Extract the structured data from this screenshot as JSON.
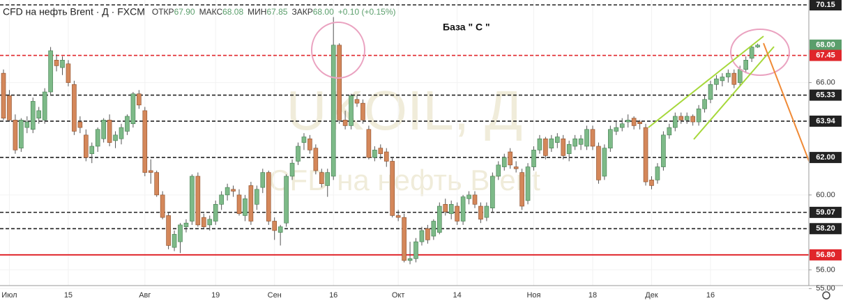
{
  "chart_data": {
    "type": "candlestick",
    "title": "CFD на нефть Brent · Д · FXCM",
    "legend_items": [
      {
        "label": "ОТКР",
        "value": "67.90"
      },
      {
        "label": "МАКС",
        "value": "68.08"
      },
      {
        "label": "МИН",
        "value": "67.85"
      },
      {
        "label": "ЗАКР",
        "value": "68.00"
      }
    ],
    "change": "+0.10 (+0.15%)",
    "annotation": "База \" С \"",
    "watermark": [
      "UKOIL, Д",
      "CFD на нефть Brent"
    ],
    "up_color": "#7dba88",
    "down_color": "#d4875a",
    "ylim": [
      55.16,
      70.41
    ],
    "yticks": [
      {
        "value": 66,
        "label": "66.00"
      },
      {
        "value": 60,
        "label": "60.00"
      },
      {
        "value": 56,
        "label": "56.00"
      },
      {
        "value": 55,
        "label": "55.00"
      }
    ],
    "levels": [
      {
        "value": 70.15,
        "label": "70.15",
        "color": "#222222",
        "style": "dashed"
      },
      {
        "value": 68.0,
        "label": "68.00",
        "color": "#5a9e6b",
        "style": "none"
      },
      {
        "value": 67.45,
        "label": "67.45",
        "color": "#e0262b",
        "style": "dashed"
      },
      {
        "value": 65.33,
        "label": "65.33",
        "color": "#222222",
        "style": "dashed"
      },
      {
        "value": 63.94,
        "label": "63.94",
        "color": "#222222",
        "style": "dashed"
      },
      {
        "value": 62.0,
        "label": "62.00",
        "color": "#222222",
        "style": "dashed"
      },
      {
        "value": 59.07,
        "label": "59.07",
        "color": "#222222",
        "style": "dashed"
      },
      {
        "value": 58.2,
        "label": "58.20",
        "color": "#222222",
        "style": "dashed"
      },
      {
        "value": 56.8,
        "label": "56.80",
        "color": "#e0262b",
        "style": "solid"
      }
    ],
    "xticks": [
      {
        "value": 1,
        "label": "Июл"
      },
      {
        "value": 11,
        "label": "15"
      },
      {
        "value": 24,
        "label": "Авг"
      },
      {
        "value": 36,
        "label": "19"
      },
      {
        "value": 46,
        "label": "Сен"
      },
      {
        "value": 56,
        "label": "16"
      },
      {
        "value": 67,
        "label": "Окт"
      },
      {
        "value": 77,
        "label": "14"
      },
      {
        "value": 90,
        "label": "Ноя"
      },
      {
        "value": 100,
        "label": "18"
      },
      {
        "value": 110,
        "label": "Дек"
      },
      {
        "value": 120,
        "label": "16"
      }
    ],
    "candles": [
      [
        66.5,
        66.7,
        64.0,
        64.1
      ],
      [
        65.3,
        65.6,
        63.9,
        64.0
      ],
      [
        64.0,
        64.3,
        62.2,
        62.4
      ],
      [
        62.5,
        64.1,
        62.3,
        64.0
      ],
      [
        63.6,
        64.2,
        63.3,
        63.9
      ],
      [
        63.5,
        65.2,
        63.3,
        65.0
      ],
      [
        64.1,
        64.7,
        63.8,
        64.5
      ],
      [
        64.0,
        65.7,
        63.8,
        65.5
      ],
      [
        65.5,
        67.9,
        65.3,
        67.7
      ],
      [
        67.2,
        67.5,
        66.6,
        66.9
      ],
      [
        66.8,
        67.4,
        66.4,
        67.2
      ],
      [
        67.0,
        67.2,
        65.8,
        66.0
      ],
      [
        65.9,
        66.1,
        63.2,
        63.4
      ],
      [
        63.9,
        64.2,
        63.3,
        63.6
      ],
      [
        63.2,
        63.5,
        61.8,
        62.0
      ],
      [
        62.2,
        62.8,
        61.7,
        62.6
      ],
      [
        62.6,
        63.6,
        62.3,
        63.5
      ],
      [
        63.0,
        64.1,
        62.8,
        64.0
      ],
      [
        64.0,
        64.3,
        62.6,
        62.8
      ],
      [
        62.9,
        63.4,
        62.5,
        63.2
      ],
      [
        63.0,
        63.8,
        62.7,
        63.6
      ],
      [
        63.4,
        64.3,
        63.2,
        64.2
      ],
      [
        63.8,
        65.5,
        63.6,
        65.4
      ],
      [
        65.4,
        65.6,
        64.6,
        64.8
      ],
      [
        64.5,
        64.7,
        61.0,
        61.2
      ],
      [
        61.3,
        61.9,
        60.6,
        61.2
      ],
      [
        61.2,
        61.3,
        59.9,
        60.0
      ],
      [
        60.0,
        60.2,
        58.7,
        58.8
      ],
      [
        58.9,
        59.1,
        57.1,
        57.3
      ],
      [
        57.2,
        58.1,
        57.0,
        57.9
      ],
      [
        57.5,
        58.5,
        56.9,
        58.4
      ],
      [
        58.3,
        58.7,
        58.0,
        58.5
      ],
      [
        58.6,
        61.1,
        58.4,
        61.0
      ],
      [
        61.0,
        61.2,
        58.3,
        58.4
      ],
      [
        58.8,
        59.0,
        58.2,
        58.3
      ],
      [
        58.4,
        58.9,
        58.1,
        58.7
      ],
      [
        58.6,
        59.7,
        58.4,
        59.5
      ],
      [
        59.5,
        60.2,
        59.2,
        60.0
      ],
      [
        60.0,
        60.6,
        59.7,
        60.4
      ],
      [
        60.3,
        60.5,
        59.9,
        60.2
      ],
      [
        60.0,
        60.3,
        58.9,
        59.0
      ],
      [
        58.9,
        60.0,
        58.6,
        59.8
      ],
      [
        60.5,
        60.7,
        58.4,
        58.6
      ],
      [
        59.5,
        60.5,
        59.2,
        60.3
      ],
      [
        60.4,
        61.4,
        60.1,
        61.2
      ],
      [
        61.2,
        61.3,
        58.4,
        58.6
      ],
      [
        58.6,
        58.8,
        57.6,
        58.1
      ],
      [
        58.0,
        58.4,
        57.3,
        58.3
      ],
      [
        58.5,
        61.1,
        58.3,
        61.0
      ],
      [
        61.0,
        61.9,
        60.8,
        61.7
      ],
      [
        61.8,
        62.8,
        61.6,
        62.6
      ],
      [
        62.8,
        63.3,
        62.4,
        63.1
      ],
      [
        63.0,
        63.2,
        62.2,
        62.4
      ],
      [
        62.5,
        62.7,
        61.1,
        61.3
      ],
      [
        61.2,
        61.4,
        60.4,
        60.6
      ],
      [
        60.5,
        61.4,
        59.9,
        61.2
      ],
      [
        61.0,
        69.5,
        60.8,
        68.0
      ],
      [
        68.0,
        68.1,
        63.8,
        64.0
      ],
      [
        64.0,
        64.5,
        63.5,
        63.7
      ],
      [
        63.7,
        65.4,
        63.5,
        65.3
      ],
      [
        65.1,
        65.3,
        64.7,
        64.9
      ],
      [
        64.9,
        65.1,
        63.8,
        64.0
      ],
      [
        63.5,
        63.7,
        61.9,
        62.0
      ],
      [
        62.0,
        62.6,
        61.8,
        62.4
      ],
      [
        62.5,
        62.7,
        61.9,
        62.2
      ],
      [
        62.3,
        62.5,
        61.5,
        61.8
      ],
      [
        61.8,
        62.0,
        58.8,
        58.9
      ],
      [
        58.9,
        59.2,
        58.6,
        58.8
      ],
      [
        58.8,
        59.0,
        56.4,
        56.5
      ],
      [
        56.5,
        57.5,
        56.3,
        56.6
      ],
      [
        56.6,
        57.7,
        56.4,
        57.5
      ],
      [
        57.5,
        58.3,
        57.3,
        58.1
      ],
      [
        58.2,
        58.4,
        57.4,
        57.6
      ],
      [
        57.8,
        58.7,
        57.6,
        58.6
      ],
      [
        58.0,
        59.6,
        57.9,
        59.4
      ],
      [
        59.5,
        59.8,
        58.9,
        59.1
      ],
      [
        59.0,
        59.7,
        58.7,
        59.5
      ],
      [
        59.4,
        59.6,
        58.4,
        58.6
      ],
      [
        58.6,
        60.0,
        58.4,
        59.9
      ],
      [
        59.8,
        60.2,
        59.5,
        60.0
      ],
      [
        60.0,
        60.2,
        59.3,
        59.5
      ],
      [
        59.4,
        59.6,
        58.5,
        58.7
      ],
      [
        58.8,
        59.6,
        58.6,
        59.4
      ],
      [
        59.3,
        61.2,
        59.1,
        61.0
      ],
      [
        61.0,
        61.8,
        60.8,
        61.6
      ],
      [
        61.5,
        62.2,
        61.3,
        62.0
      ],
      [
        62.3,
        62.5,
        61.4,
        61.6
      ],
      [
        61.5,
        61.8,
        61.2,
        61.4
      ],
      [
        61.2,
        61.4,
        59.2,
        59.4
      ],
      [
        59.7,
        61.7,
        59.5,
        61.5
      ],
      [
        61.5,
        62.6,
        61.3,
        62.4
      ],
      [
        62.4,
        63.2,
        62.2,
        63.0
      ],
      [
        63.0,
        63.1,
        61.9,
        62.1
      ],
      [
        62.5,
        63.2,
        62.3,
        63.0
      ],
      [
        62.8,
        63.3,
        62.5,
        63.1
      ],
      [
        63.0,
        63.2,
        61.9,
        62.1
      ],
      [
        62.2,
        62.9,
        61.8,
        62.7
      ],
      [
        62.6,
        63.2,
        62.4,
        63.0
      ],
      [
        62.7,
        63.2,
        62.4,
        63.0
      ],
      [
        62.6,
        63.7,
        62.4,
        63.5
      ],
      [
        63.5,
        63.7,
        62.4,
        62.6
      ],
      [
        62.6,
        62.8,
        60.6,
        60.8
      ],
      [
        61.0,
        62.7,
        60.8,
        62.5
      ],
      [
        62.5,
        63.7,
        62.3,
        63.5
      ],
      [
        63.4,
        63.9,
        63.2,
        63.6
      ],
      [
        63.6,
        64.1,
        63.4,
        63.8
      ],
      [
        63.9,
        64.3,
        63.6,
        64.0
      ],
      [
        64.1,
        64.2,
        63.5,
        63.7
      ],
      [
        63.9,
        64.0,
        63.5,
        63.8
      ],
      [
        63.6,
        63.8,
        60.5,
        60.7
      ],
      [
        60.8,
        61.0,
        60.3,
        60.5
      ],
      [
        60.8,
        61.7,
        60.6,
        61.5
      ],
      [
        61.5,
        63.4,
        61.3,
        63.2
      ],
      [
        63.2,
        63.8,
        63.0,
        63.6
      ],
      [
        63.6,
        64.4,
        63.4,
        64.2
      ],
      [
        64.2,
        64.4,
        63.8,
        64.0
      ],
      [
        64.0,
        64.4,
        63.8,
        64.2
      ],
      [
        64.2,
        64.3,
        63.7,
        63.9
      ],
      [
        63.9,
        64.8,
        63.7,
        64.6
      ],
      [
        64.6,
        65.3,
        64.4,
        65.1
      ],
      [
        65.1,
        66.1,
        64.9,
        65.9
      ],
      [
        65.9,
        66.4,
        65.6,
        66.2
      ],
      [
        66.1,
        66.5,
        65.8,
        66.3
      ],
      [
        66.3,
        66.7,
        66.0,
        66.5
      ],
      [
        66.5,
        66.7,
        65.7,
        65.9
      ],
      [
        66.0,
        66.9,
        65.8,
        66.7
      ],
      [
        66.7,
        67.4,
        66.5,
        67.2
      ],
      [
        67.3,
        68.0,
        67.1,
        67.9
      ],
      [
        67.9,
        68.08,
        67.85,
        68.0
      ]
    ]
  }
}
